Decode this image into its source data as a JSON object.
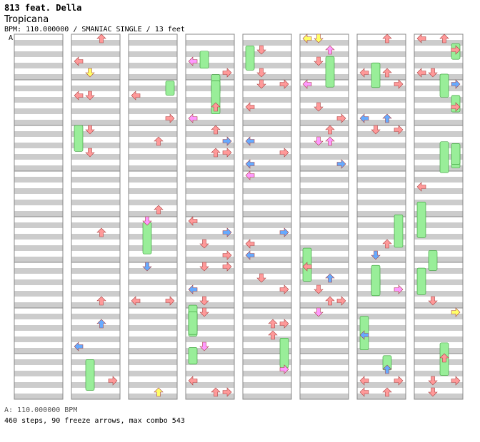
{
  "header": {
    "artist": "813 feat. Della",
    "title": "Tropicana",
    "meta": "BPM: 110.000000 / SMANIAC SINGLE / 13 feet"
  },
  "bpm_marker": "A",
  "footer": {
    "bpm_line": "A: 110.000000 BPM",
    "stats": "460 steps, 90 freeze arrows, max combo 543"
  },
  "chart_data": {
    "type": "step-chart",
    "columns": 8,
    "measures_per_column": 8,
    "stripe_colors": [
      "#ffffff",
      "#cccccc"
    ],
    "arrow_colors": {
      "quarter": "#ff9999",
      "eighth": "#66aaff",
      "sixteenth": "#ff99ff",
      "twelfth": "#ffff66",
      "freeze": "#99ee99"
    },
    "lanes": [
      "left",
      "down",
      "up",
      "right"
    ]
  }
}
